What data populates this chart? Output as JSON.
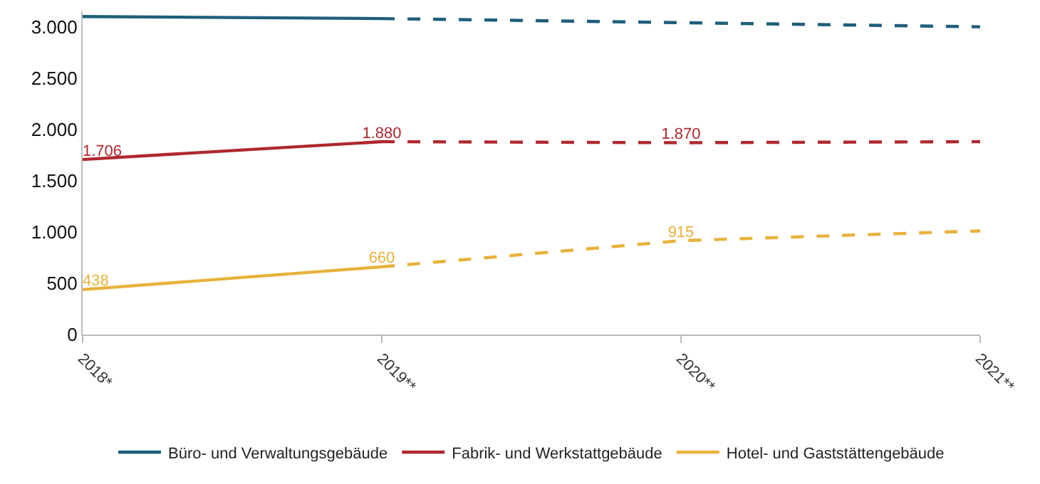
{
  "chart_data": {
    "type": "line",
    "categories": [
      "2018*",
      "2019**",
      "2020**",
      "2021**"
    ],
    "ylim": [
      0,
      3150
    ],
    "yticks": [
      {
        "value": 0,
        "label": "0"
      },
      {
        "value": 500,
        "label": "500"
      },
      {
        "value": 1000,
        "label": "1.000"
      },
      {
        "value": 1500,
        "label": "1.500"
      },
      {
        "value": 2000,
        "label": "2.000"
      },
      {
        "value": 2500,
        "label": "2.500"
      },
      {
        "value": 3000,
        "label": "3.000"
      }
    ],
    "grid": false,
    "legend": "bottom",
    "marker": "none",
    "series": [
      {
        "name": "Büro- und Verwaltungsgebäude",
        "color": "#1f5f7a",
        "line_style": "solid",
        "values": [
          3100,
          3080,
          null,
          null
        ]
      },
      {
        "color": "#1f5f7a",
        "line_style": "dashed",
        "values": [
          null,
          3080,
          3040,
          3000
        ]
      },
      {
        "name": "Fabrik- und Werkstattgebäude",
        "color": "#b0282e",
        "line_style": "solid",
        "values": [
          1706,
          1880,
          null,
          null
        ],
        "value_labels": [
          "1.706",
          "1.880",
          null,
          null
        ]
      },
      {
        "color": "#b0282e",
        "line_style": "dashed",
        "values": [
          null,
          1880,
          1870,
          1880
        ],
        "value_labels": [
          null,
          null,
          "1.870",
          null
        ]
      },
      {
        "name": "Hotel- und Gaststättengebäude",
        "color": "#e8b23a",
        "line_style": "solid",
        "values": [
          438,
          660,
          null,
          null
        ],
        "value_labels": [
          "438",
          "660",
          null,
          null
        ]
      },
      {
        "color": "#e8b23a",
        "line_style": "dashed",
        "values": [
          null,
          660,
          915,
          1010
        ],
        "value_labels": [
          null,
          null,
          "915",
          null
        ]
      }
    ]
  }
}
